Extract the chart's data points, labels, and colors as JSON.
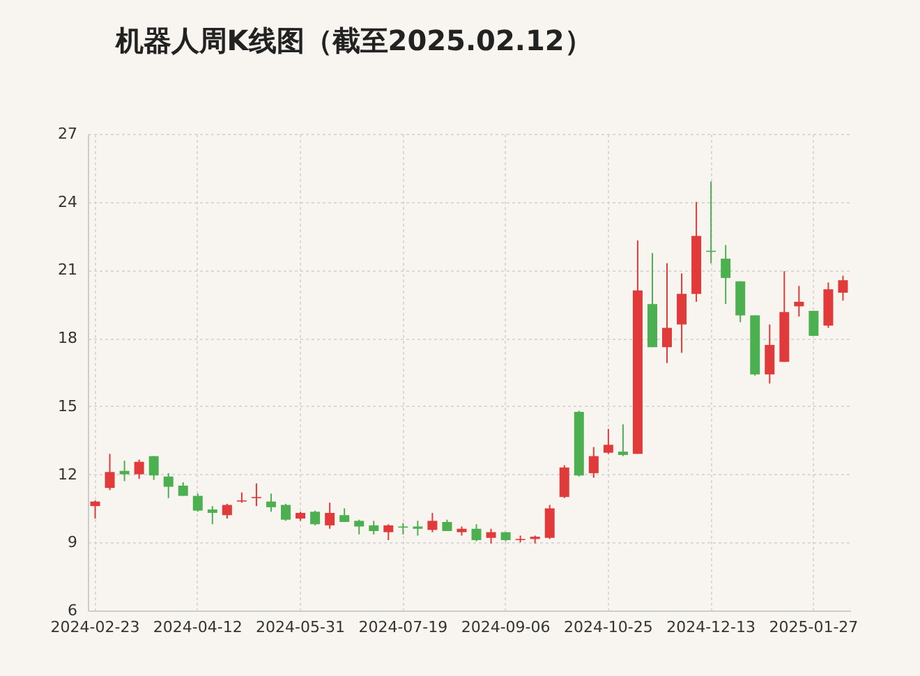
{
  "chart_data": {
    "type": "candlestick",
    "title": "机器人周K线图（截至2025.02.12）",
    "categories": [
      "2024-02-23",
      null,
      null,
      null,
      null,
      null,
      null,
      "2024-04-12",
      null,
      null,
      null,
      null,
      null,
      null,
      "2024-05-31",
      null,
      null,
      null,
      null,
      null,
      null,
      "2024-07-19",
      null,
      null,
      null,
      null,
      null,
      null,
      "2024-09-06",
      null,
      null,
      null,
      null,
      null,
      null,
      "2024-10-25",
      null,
      null,
      null,
      null,
      null,
      null,
      "2024-12-13",
      null,
      null,
      null,
      null,
      null,
      null,
      "2025-01-27",
      null,
      null
    ],
    "ohlc": [
      [
        10.6,
        10.85,
        10.05,
        10.8
      ],
      [
        11.4,
        12.9,
        11.3,
        12.1
      ],
      [
        12.15,
        12.6,
        11.7,
        12.0
      ],
      [
        12.0,
        12.65,
        11.8,
        12.55
      ],
      [
        12.8,
        12.8,
        11.75,
        11.95
      ],
      [
        11.9,
        12.05,
        10.95,
        11.45
      ],
      [
        11.5,
        11.65,
        11.05,
        11.05
      ],
      [
        11.05,
        11.15,
        10.35,
        10.4
      ],
      [
        10.45,
        10.6,
        9.8,
        10.3
      ],
      [
        10.2,
        10.7,
        10.05,
        10.65
      ],
      [
        10.8,
        11.2,
        10.75,
        10.85
      ],
      [
        10.95,
        11.6,
        10.6,
        11.0
      ],
      [
        10.8,
        11.15,
        10.35,
        10.55
      ],
      [
        10.65,
        10.7,
        9.95,
        10.0
      ],
      [
        10.05,
        10.35,
        9.95,
        10.3
      ],
      [
        10.35,
        10.4,
        9.75,
        9.8
      ],
      [
        9.75,
        10.75,
        9.6,
        10.3
      ],
      [
        10.2,
        10.5,
        9.9,
        9.9
      ],
      [
        9.95,
        10.0,
        9.35,
        9.7
      ],
      [
        9.75,
        9.95,
        9.35,
        9.5
      ],
      [
        9.45,
        9.8,
        9.1,
        9.75
      ],
      [
        9.7,
        9.85,
        9.35,
        9.65
      ],
      [
        9.7,
        9.95,
        9.3,
        9.6
      ],
      [
        9.55,
        10.3,
        9.45,
        9.95
      ],
      [
        9.9,
        10.0,
        9.5,
        9.5
      ],
      [
        9.45,
        9.7,
        9.3,
        9.6
      ],
      [
        9.6,
        9.8,
        9.05,
        9.1
      ],
      [
        9.2,
        9.6,
        8.95,
        9.45
      ],
      [
        9.45,
        9.45,
        9.05,
        9.1
      ],
      [
        9.1,
        9.3,
        9.0,
        9.15
      ],
      [
        9.15,
        9.3,
        8.95,
        9.25
      ],
      [
        9.2,
        10.65,
        9.15,
        10.5
      ],
      [
        11.0,
        12.4,
        10.95,
        12.3
      ],
      [
        14.75,
        14.8,
        11.9,
        11.95
      ],
      [
        12.05,
        13.2,
        11.85,
        12.8
      ],
      [
        12.95,
        14.0,
        12.9,
        13.3
      ],
      [
        13.0,
        14.2,
        12.8,
        12.85
      ],
      [
        12.9,
        22.3,
        12.9,
        20.1
      ],
      [
        19.5,
        21.75,
        17.6,
        17.6
      ],
      [
        17.6,
        21.3,
        16.9,
        18.45
      ],
      [
        18.6,
        20.85,
        17.35,
        19.95
      ],
      [
        19.95,
        24.0,
        19.6,
        22.5
      ],
      [
        21.85,
        24.9,
        21.3,
        21.8
      ],
      [
        21.5,
        22.1,
        19.5,
        20.65
      ],
      [
        20.5,
        20.5,
        18.7,
        19.0
      ],
      [
        19.0,
        19.0,
        16.35,
        16.4
      ],
      [
        16.4,
        18.6,
        16.0,
        17.7
      ],
      [
        16.95,
        20.95,
        16.95,
        19.15
      ],
      [
        19.4,
        20.3,
        18.95,
        19.6
      ],
      [
        19.2,
        19.2,
        18.1,
        18.1
      ],
      [
        18.55,
        20.45,
        18.45,
        20.15
      ],
      [
        20.0,
        20.75,
        19.65,
        20.55
      ]
    ],
    "colors": [
      "#e03a3a",
      "#e03a3a",
      "#4caf50",
      "#e03a3a",
      "#4caf50",
      "#4caf50",
      "#4caf50",
      "#4caf50",
      "#4caf50",
      "#e03a3a",
      "#e03a3a",
      "#e03a3a",
      "#4caf50",
      "#4caf50",
      "#e03a3a",
      "#4caf50",
      "#e03a3a",
      "#4caf50",
      "#4caf50",
      "#4caf50",
      "#e03a3a",
      "#4caf50",
      "#4caf50",
      "#e03a3a",
      "#4caf50",
      "#e03a3a",
      "#4caf50",
      "#e03a3a",
      "#4caf50",
      "#e03a3a",
      "#e03a3a",
      "#e03a3a",
      "#e03a3a",
      "#4caf50",
      "#e03a3a",
      "#e03a3a",
      "#4caf50",
      "#e03a3a",
      "#4caf50",
      "#e03a3a",
      "#e03a3a",
      "#e03a3a",
      "#4caf50",
      "#4caf50",
      "#4caf50",
      "#4caf50",
      "#e03a3a",
      "#e03a3a",
      "#e03a3a",
      "#4caf50",
      "#e03a3a",
      "#e03a3a"
    ],
    "ylim": [
      6,
      27
    ],
    "yticks": [
      6,
      9,
      12,
      15,
      18,
      21,
      24,
      27
    ],
    "grid": true
  }
}
